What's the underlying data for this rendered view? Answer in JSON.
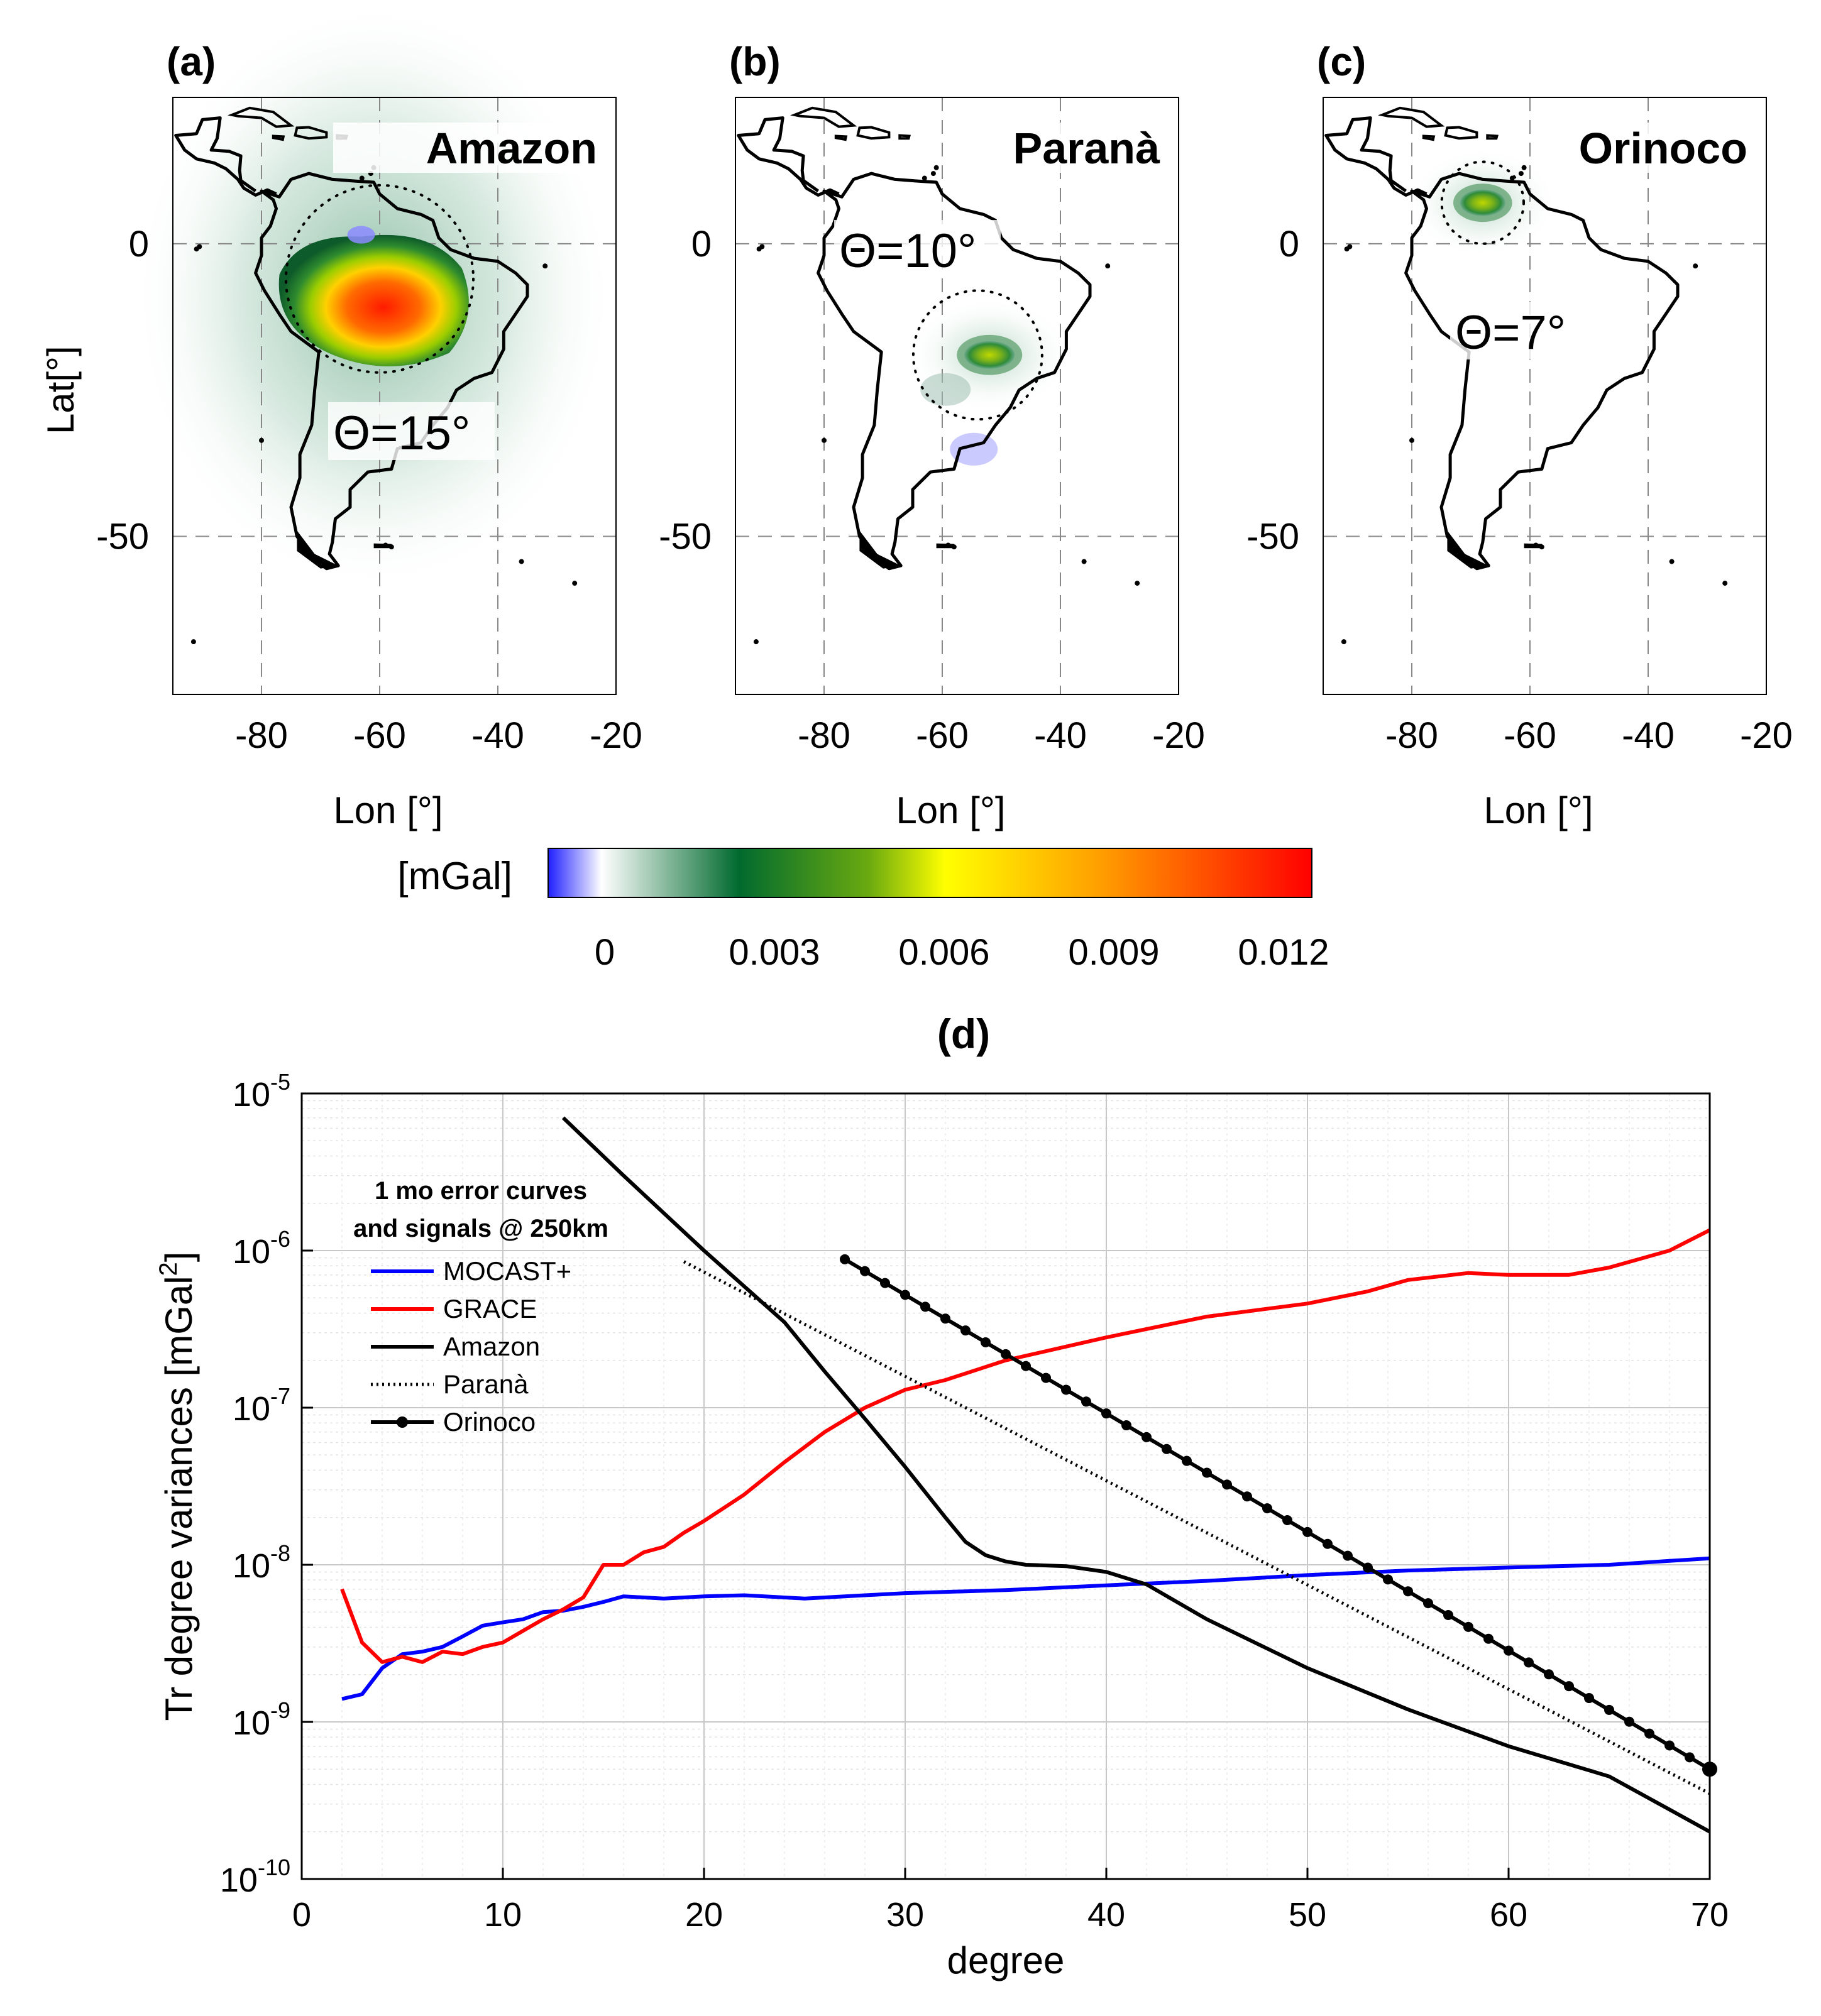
{
  "maps": [
    {
      "panel": "(a)",
      "basin": "Amazon",
      "theta": "Θ=15°",
      "blob_color": "#ff2a00",
      "peak": 0.0125
    },
    {
      "panel": "(b)",
      "basin": "Paranà",
      "theta": "Θ=10°",
      "blob_color": "#9acd00",
      "peak": 0.006
    },
    {
      "panel": "(c)",
      "basin": "Orinoco",
      "theta": "Θ=7°",
      "blob_color": "#9acd00",
      "peak": 0.0055
    }
  ],
  "map_axes": {
    "xlabel": "Lon [°]",
    "ylabel": "Lat[°]",
    "xticks": [
      "-80",
      "-60",
      "-40",
      "-20"
    ],
    "yticks": [
      "0",
      "-50"
    ]
  },
  "colorbar": {
    "unit": "[mGal]",
    "ticks": [
      "0",
      "0.003",
      "0.006",
      "0.009",
      "0.012"
    ],
    "colors": [
      "#1f1fff",
      "#ffffff",
      "#006a2e",
      "#6aaa10",
      "#ffff00",
      "#ffa000",
      "#ff0000"
    ]
  },
  "chart_data": {
    "type": "line",
    "panel": "(d)",
    "xlabel": "degree",
    "ylabel": "Tr degree variances [mGal",
    "ylabel_sup": "2",
    "ylabel_end": "]",
    "xlim": [
      0,
      70
    ],
    "ylim": [
      1e-10,
      1e-05
    ],
    "yscale": "log",
    "xticks": [
      "0",
      "10",
      "20",
      "30",
      "40",
      "50",
      "60",
      "70"
    ],
    "yticks": [
      {
        "base": "10",
        "exp": "-10"
      },
      {
        "base": "10",
        "exp": "-9"
      },
      {
        "base": "10",
        "exp": "-8"
      },
      {
        "base": "10",
        "exp": "-7"
      },
      {
        "base": "10",
        "exp": "-6"
      },
      {
        "base": "10",
        "exp": "-5"
      }
    ],
    "legend_title": [
      "1 mo error curves",
      "and signals @ 250km"
    ],
    "series": [
      {
        "name": "MOCAST+",
        "color": "#0000ff",
        "style": "solid",
        "x": [
          2,
          3,
          4,
          5,
          6,
          7,
          8,
          9,
          10,
          11,
          12,
          13,
          14,
          15,
          16,
          18,
          20,
          22,
          25,
          28,
          30,
          35,
          40,
          45,
          50,
          55,
          60,
          65,
          70
        ],
        "y": [
          1.4e-09,
          1.5e-09,
          2.2e-09,
          2.7e-09,
          2.8e-09,
          3e-09,
          3.5e-09,
          4.1e-09,
          4.3e-09,
          4.5e-09,
          5e-09,
          5.1e-09,
          5.4e-09,
          5.8e-09,
          6.3e-09,
          6.1e-09,
          6.3e-09,
          6.4e-09,
          6.1e-09,
          6.4e-09,
          6.6e-09,
          6.9e-09,
          7.4e-09,
          7.9e-09,
          8.6e-09,
          9.2e-09,
          9.6e-09,
          1e-08,
          1.1e-08
        ]
      },
      {
        "name": "GRACE",
        "color": "#ff0000",
        "style": "solid",
        "x": [
          2,
          3,
          4,
          5,
          6,
          7,
          8,
          9,
          10,
          11,
          12,
          13,
          14,
          15,
          16,
          17,
          18,
          19,
          20,
          22,
          24,
          26,
          28,
          30,
          32,
          35,
          40,
          45,
          50,
          53,
          55,
          58,
          60,
          63,
          65,
          68,
          70
        ],
        "y": [
          7e-09,
          3.2e-09,
          2.4e-09,
          2.6e-09,
          2.4e-09,
          2.8e-09,
          2.7e-09,
          3e-09,
          3.2e-09,
          3.8e-09,
          4.5e-09,
          5.2e-09,
          6.2e-09,
          1e-08,
          1e-08,
          1.2e-08,
          1.3e-08,
          1.6e-08,
          1.9e-08,
          2.8e-08,
          4.5e-08,
          7e-08,
          1e-07,
          1.3e-07,
          1.5e-07,
          2e-07,
          2.8e-07,
          3.8e-07,
          4.6e-07,
          5.5e-07,
          6.5e-07,
          7.2e-07,
          7e-07,
          7e-07,
          7.8e-07,
          1e-06,
          1.35e-06
        ]
      },
      {
        "name": "Amazon",
        "color": "#000000",
        "style": "solid",
        "x": [
          13,
          16,
          20,
          24,
          26,
          28,
          30,
          32,
          33,
          34,
          35,
          36,
          38,
          40,
          42,
          45,
          50,
          55,
          60,
          65,
          70
        ],
        "y": [
          7e-06,
          3e-06,
          1e-06,
          3.5e-07,
          1.7e-07,
          8.5e-08,
          4.2e-08,
          2e-08,
          1.4e-08,
          1.15e-08,
          1.05e-08,
          1e-08,
          9.8e-09,
          9e-09,
          7.5e-09,
          4.5e-09,
          2.2e-09,
          1.2e-09,
          7e-10,
          4.5e-10,
          2e-10
        ]
      },
      {
        "name": "Paranà",
        "color": "#000000",
        "style": "dotted",
        "x": [
          19,
          70
        ],
        "y": [
          8.5e-07,
          3.5e-10
        ]
      },
      {
        "name": "Orinoco",
        "color": "#000000",
        "style": "marker",
        "x": [
          27,
          70
        ],
        "y": [
          8.8e-07,
          5e-10
        ]
      }
    ]
  }
}
